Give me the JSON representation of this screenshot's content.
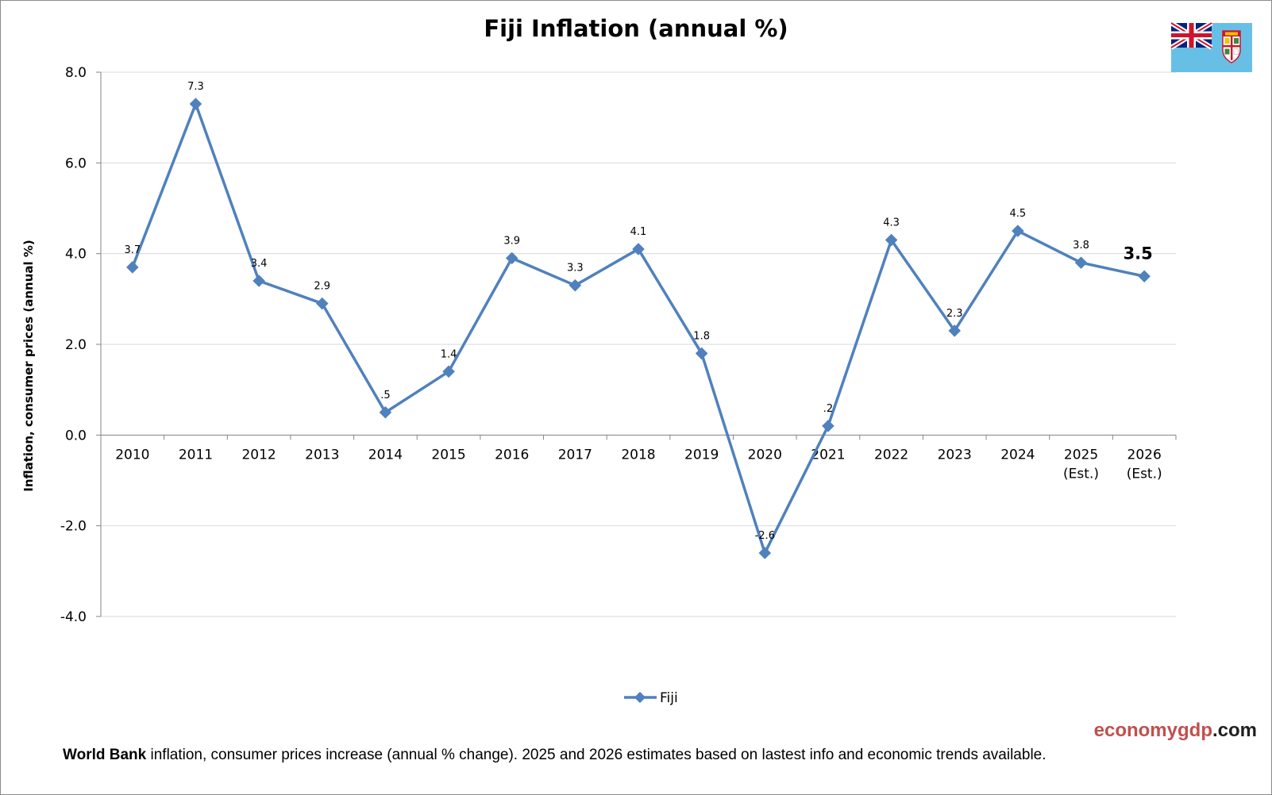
{
  "chart_data": {
    "type": "line",
    "title": "Fiji Inflation (annual %)",
    "ylabel": "Inflation, consumer prices (annual %)",
    "xlabel": "",
    "categories": [
      "2010",
      "2011",
      "2012",
      "2013",
      "2014",
      "2015",
      "2016",
      "2017",
      "2018",
      "2019",
      "2020",
      "2021",
      "2022",
      "2023",
      "2024",
      "2025\n(Est.)",
      "2026\n(Est.)"
    ],
    "series": [
      {
        "name": "Fiji",
        "values": [
          3.7,
          7.3,
          3.4,
          2.9,
          0.5,
          1.4,
          3.9,
          3.3,
          4.1,
          1.8,
          -2.6,
          0.2,
          4.3,
          2.3,
          4.5,
          3.8,
          3.5
        ],
        "data_labels": [
          "3.7",
          "7.3",
          "3.4",
          "2.9",
          ".5",
          "1.4",
          "3.9",
          "3.3",
          "4.1",
          "1.8",
          "-2.6",
          ".2",
          "4.3",
          "2.3",
          "4.5",
          "3.8",
          "3.5"
        ],
        "color": "#4f81bd"
      }
    ],
    "ylim": [
      -4.0,
      8.0
    ],
    "y_ticks": [
      "-4.0",
      "-2.0",
      "0.0",
      "2.0",
      "4.0",
      "6.0",
      "8.0"
    ],
    "grid": true,
    "legend_position": "bottom"
  },
  "watermark": {
    "part1": "economy",
    "part2": "gdp",
    "part3": ".com"
  },
  "footer": {
    "bold": "World Bank",
    "text": " inflation, consumer prices increase (annual % change).  2025 and 2026 estimates based on lastest info and economic trends available."
  },
  "flag_icon": "fiji-flag-icon",
  "colors": {
    "line": "#4f81bd",
    "grid": "#d9d9d9",
    "axis": "#868686",
    "watermark_red": "#c0504d",
    "flag_blue": "#68bfe5"
  }
}
